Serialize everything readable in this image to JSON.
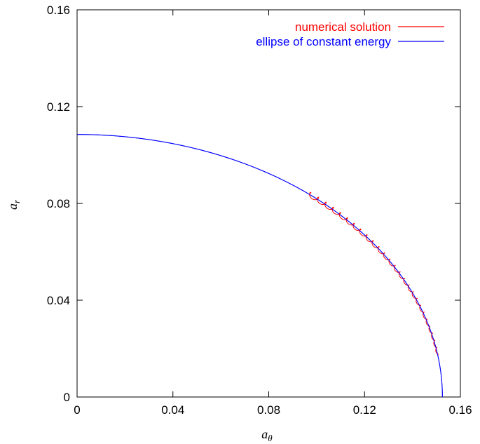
{
  "chart_data": {
    "type": "line",
    "title": "",
    "xlabel": {
      "base": "a",
      "sub": "θ"
    },
    "ylabel": {
      "base": "a",
      "sub": "r"
    },
    "xlim": [
      0,
      0.16
    ],
    "ylim": [
      0,
      0.16
    ],
    "xticks": [
      {
        "value": 0,
        "label": "0"
      },
      {
        "value": 0.04,
        "label": "0.04"
      },
      {
        "value": 0.08,
        "label": "0.08"
      },
      {
        "value": 0.12,
        "label": "0.12"
      },
      {
        "value": 0.16,
        "label": "0.16"
      }
    ],
    "yticks": [
      {
        "value": 0,
        "label": "0"
      },
      {
        "value": 0.04,
        "label": "0.04"
      },
      {
        "value": 0.08,
        "label": "0.08"
      },
      {
        "value": 0.12,
        "label": "0.12"
      },
      {
        "value": 0.16,
        "label": "0.16"
      }
    ],
    "grid": false,
    "legend_position": "top-right",
    "series": [
      {
        "name": "numerical solution",
        "color": "#ff0000",
        "style": "oscillating",
        "x_range": [
          0.0965,
          0.1505
        ],
        "y_start": 0.0835
      },
      {
        "name": "ellipse of constant energy",
        "color": "#0000ff",
        "style": "ellipse",
        "semi_axis_x": 0.1525,
        "semi_axis_y": 0.1085,
        "y_end": 0.0
      }
    ]
  }
}
